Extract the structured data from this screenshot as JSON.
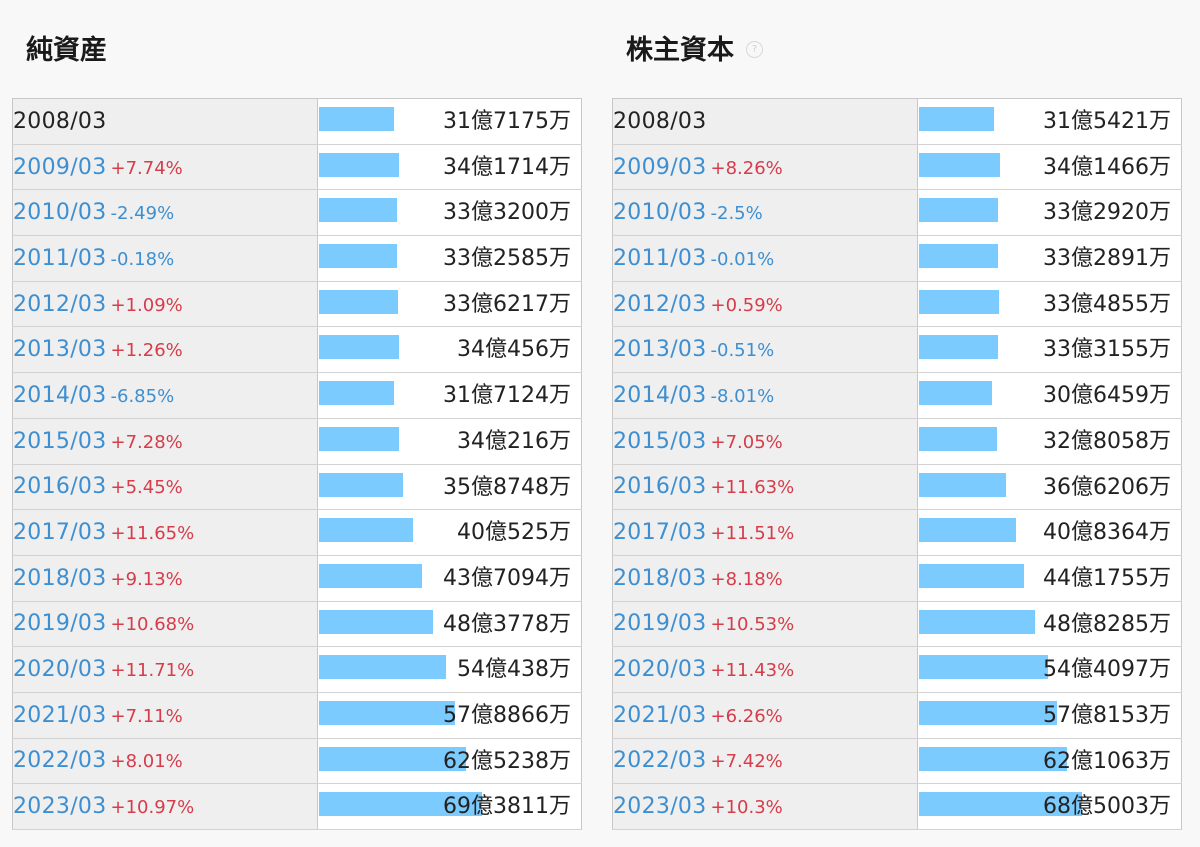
{
  "panels": [
    {
      "title": "純資産",
      "has_help_icon": false,
      "bar_color": "#7ccbff",
      "rows": [
        {
          "period": "2008/03",
          "change": "",
          "value_text": "31億7175万",
          "value": 3171750000
        },
        {
          "period": "2009/03",
          "change": "+7.74%",
          "value_text": "34億1714万",
          "value": 3417140000
        },
        {
          "period": "2010/03",
          "change": "-2.49%",
          "value_text": "33億3200万",
          "value": 3332000000
        },
        {
          "period": "2011/03",
          "change": "-0.18%",
          "value_text": "33億2585万",
          "value": 3325850000
        },
        {
          "period": "2012/03",
          "change": "+1.09%",
          "value_text": "33億6217万",
          "value": 3362170000
        },
        {
          "period": "2013/03",
          "change": "+1.26%",
          "value_text": "34億456万",
          "value": 3404560000
        },
        {
          "period": "2014/03",
          "change": "-6.85%",
          "value_text": "31億7124万",
          "value": 3171240000
        },
        {
          "period": "2015/03",
          "change": "+7.28%",
          "value_text": "34億216万",
          "value": 3402160000
        },
        {
          "period": "2016/03",
          "change": "+5.45%",
          "value_text": "35億8748万",
          "value": 3587480000
        },
        {
          "period": "2017/03",
          "change": "+11.65%",
          "value_text": "40億525万",
          "value": 4005250000
        },
        {
          "period": "2018/03",
          "change": "+9.13%",
          "value_text": "43億7094万",
          "value": 4370940000
        },
        {
          "period": "2019/03",
          "change": "+10.68%",
          "value_text": "48億3778万",
          "value": 4837780000
        },
        {
          "period": "2020/03",
          "change": "+11.71%",
          "value_text": "54億438万",
          "value": 5404380000
        },
        {
          "period": "2021/03",
          "change": "+7.11%",
          "value_text": "57億8866万",
          "value": 5788660000
        },
        {
          "period": "2022/03",
          "change": "+8.01%",
          "value_text": "62億5238万",
          "value": 6252380000
        },
        {
          "period": "2023/03",
          "change": "+10.97%",
          "value_text": "69億3811万",
          "value": 6938110000
        }
      ]
    },
    {
      "title": "株主資本",
      "has_help_icon": true,
      "help_icon": "question-circle-icon",
      "help_glyph": "?",
      "bar_color": "#7ccbff",
      "rows": [
        {
          "period": "2008/03",
          "change": "",
          "value_text": "31億5421万",
          "value": 3154210000
        },
        {
          "period": "2009/03",
          "change": "+8.26%",
          "value_text": "34億1466万",
          "value": 3414660000
        },
        {
          "period": "2010/03",
          "change": "-2.5%",
          "value_text": "33億2920万",
          "value": 3329200000
        },
        {
          "period": "2011/03",
          "change": "-0.01%",
          "value_text": "33億2891万",
          "value": 3328910000
        },
        {
          "period": "2012/03",
          "change": "+0.59%",
          "value_text": "33億4855万",
          "value": 3348550000
        },
        {
          "period": "2013/03",
          "change": "-0.51%",
          "value_text": "33億3155万",
          "value": 3331550000
        },
        {
          "period": "2014/03",
          "change": "-8.01%",
          "value_text": "30億6459万",
          "value": 3064590000
        },
        {
          "period": "2015/03",
          "change": "+7.05%",
          "value_text": "32億8058万",
          "value": 3280580000
        },
        {
          "period": "2016/03",
          "change": "+11.63%",
          "value_text": "36億6206万",
          "value": 3662060000
        },
        {
          "period": "2017/03",
          "change": "+11.51%",
          "value_text": "40億8364万",
          "value": 4083640000
        },
        {
          "period": "2018/03",
          "change": "+8.18%",
          "value_text": "44億1755万",
          "value": 4417550000
        },
        {
          "period": "2019/03",
          "change": "+10.53%",
          "value_text": "48億8285万",
          "value": 4882850000
        },
        {
          "period": "2020/03",
          "change": "+11.43%",
          "value_text": "54億4097万",
          "value": 5440970000
        },
        {
          "period": "2021/03",
          "change": "+6.26%",
          "value_text": "57億8153万",
          "value": 5781530000
        },
        {
          "period": "2022/03",
          "change": "+7.42%",
          "value_text": "62億1063万",
          "value": 6210630000
        },
        {
          "period": "2023/03",
          "change": "+10.3%",
          "value_text": "68億5003万",
          "value": 6850030000
        }
      ]
    }
  ],
  "chart_data": [
    {
      "type": "bar",
      "title": "純資産",
      "categories": [
        "2008/03",
        "2009/03",
        "2010/03",
        "2011/03",
        "2012/03",
        "2013/03",
        "2014/03",
        "2015/03",
        "2016/03",
        "2017/03",
        "2018/03",
        "2019/03",
        "2020/03",
        "2021/03",
        "2022/03",
        "2023/03"
      ],
      "values": [
        3171750000,
        3417140000,
        3332000000,
        3325850000,
        3362170000,
        3404560000,
        3171240000,
        3402160000,
        3587480000,
        4005250000,
        4370940000,
        4837780000,
        5404380000,
        5788660000,
        6252380000,
        6938110000
      ],
      "changes": [
        "",
        "+7.74%",
        "-2.49%",
        "-0.18%",
        "+1.09%",
        "+1.26%",
        "-6.85%",
        "+7.28%",
        "+5.45%",
        "+11.65%",
        "+9.13%",
        "+10.68%",
        "+11.71%",
        "+7.11%",
        "+8.01%",
        "+10.97%"
      ],
      "orientation": "horizontal",
      "grid": false
    },
    {
      "type": "bar",
      "title": "株主資本",
      "categories": [
        "2008/03",
        "2009/03",
        "2010/03",
        "2011/03",
        "2012/03",
        "2013/03",
        "2014/03",
        "2015/03",
        "2016/03",
        "2017/03",
        "2018/03",
        "2019/03",
        "2020/03",
        "2021/03",
        "2022/03",
        "2023/03"
      ],
      "values": [
        3154210000,
        3414660000,
        3329200000,
        3328910000,
        3348550000,
        3331550000,
        3064590000,
        3280580000,
        3662060000,
        4083640000,
        4417550000,
        4882850000,
        5440970000,
        5781530000,
        6210630000,
        6850030000
      ],
      "changes": [
        "",
        "+8.26%",
        "-2.5%",
        "-0.01%",
        "+0.59%",
        "-0.51%",
        "-8.01%",
        "+7.05%",
        "+11.63%",
        "+11.51%",
        "+8.18%",
        "+10.53%",
        "+11.43%",
        "+6.26%",
        "+7.42%",
        "+10.3%"
      ],
      "orientation": "horizontal",
      "grid": false
    }
  ]
}
